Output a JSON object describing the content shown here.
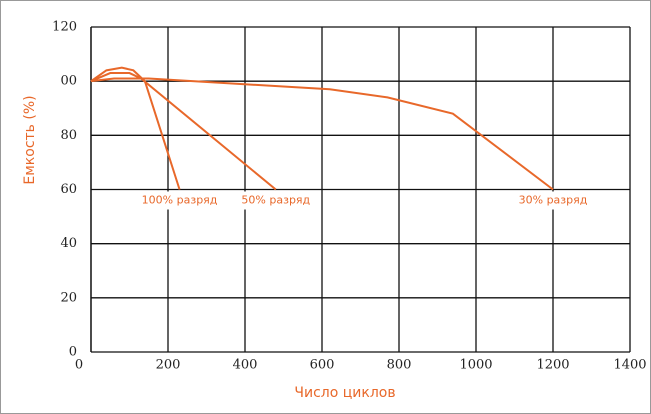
{
  "chart_data": {
    "type": "line",
    "xlabel": "Число циклов",
    "ylabel": "Емкость (%)",
    "xlim": [
      0,
      1400
    ],
    "xticks": [
      0,
      200,
      400,
      600,
      800,
      1000,
      1200,
      1400
    ],
    "ylim": [
      0,
      120
    ],
    "yticks": [
      0,
      20,
      40,
      60,
      80,
      {
        "value": 100,
        "label": "00"
      },
      120
    ],
    "grid": true,
    "series": [
      {
        "name": "100% разряд",
        "color": "#e8682a",
        "x": [
          0,
          40,
          80,
          110,
          140,
          230
        ],
        "values": [
          100,
          104,
          105,
          104,
          100,
          60
        ]
      },
      {
        "name": "50% разряд",
        "color": "#e8682a",
        "x": [
          0,
          50,
          100,
          130,
          480
        ],
        "values": [
          100,
          103,
          103,
          101,
          60
        ]
      },
      {
        "name": "30% разряд",
        "color": "#e8682a",
        "x": [
          0,
          60,
          150,
          620,
          770,
          940,
          1200
        ],
        "values": [
          100,
          101,
          101,
          97,
          94,
          88,
          60
        ]
      }
    ]
  }
}
